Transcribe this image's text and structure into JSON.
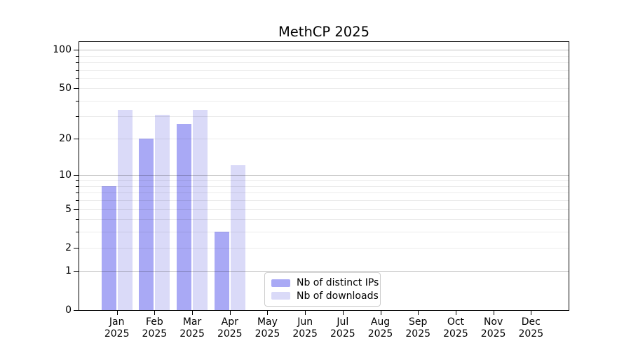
{
  "chart_data": {
    "type": "bar",
    "title": "MethCP 2025",
    "categories": [
      {
        "month": "Jan",
        "year": "2025"
      },
      {
        "month": "Feb",
        "year": "2025"
      },
      {
        "month": "Mar",
        "year": "2025"
      },
      {
        "month": "Apr",
        "year": "2025"
      },
      {
        "month": "May",
        "year": "2025"
      },
      {
        "month": "Jun",
        "year": "2025"
      },
      {
        "month": "Jul",
        "year": "2025"
      },
      {
        "month": "Aug",
        "year": "2025"
      },
      {
        "month": "Sep",
        "year": "2025"
      },
      {
        "month": "Oct",
        "year": "2025"
      },
      {
        "month": "Nov",
        "year": "2025"
      },
      {
        "month": "Dec",
        "year": "2025"
      }
    ],
    "series": [
      {
        "name": "Nb of distinct IPs",
        "color": "#a9a9f5",
        "values": [
          8,
          20,
          26,
          3,
          0,
          0,
          0,
          0,
          0,
          0,
          0,
          0
        ]
      },
      {
        "name": "Nb of downloads",
        "color": "#dadaf8",
        "values": [
          34,
          31,
          34,
          12,
          0,
          0,
          0,
          0,
          0,
          0,
          0,
          0
        ]
      }
    ],
    "y_axis": {
      "scale": "log1p",
      "max": 115,
      "ticks": [
        0,
        1,
        2,
        5,
        10,
        20,
        50,
        100
      ],
      "minor_ticks": [
        3,
        4,
        6,
        7,
        8,
        9,
        30,
        40,
        60,
        70,
        80,
        90
      ],
      "major_grid_values": [
        1,
        10,
        100
      ],
      "major_grid_color": "#0000003d",
      "minor_grid_color": "#00000014"
    },
    "legend": {
      "position": "lower-center",
      "items": [
        {
          "label": "Nb of distinct IPs",
          "color": "#a9a9f5"
        },
        {
          "label": "Nb of downloads",
          "color": "#dadaf8"
        }
      ]
    },
    "grid": true
  }
}
